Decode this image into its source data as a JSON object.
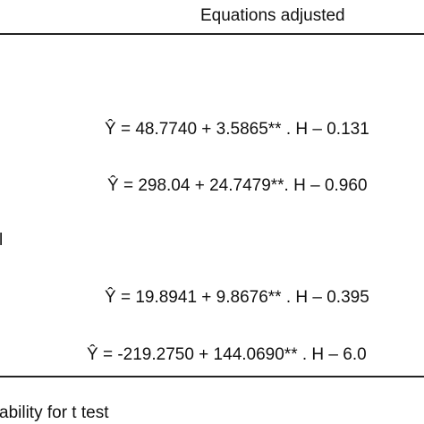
{
  "header": {
    "title": "Equations adjusted"
  },
  "table": {
    "rows": [
      {
        "label": null,
        "equation": "Ŷ = 48.7740 + 3.5865** . H – 0.131"
      },
      {
        "label": null,
        "equation": "Ŷ = 298.04 + 24.7479**. H – 0.960"
      },
      {
        "label": "l",
        "equation": null
      },
      {
        "label": null,
        "equation": "Ŷ = 19.8941 + 9.8676** . H – 0.395"
      },
      {
        "label": null,
        "equation": "Ŷ = -219.2750 + 144.0690** . H – 6.0"
      }
    ]
  },
  "footnote": "ability for t test"
}
